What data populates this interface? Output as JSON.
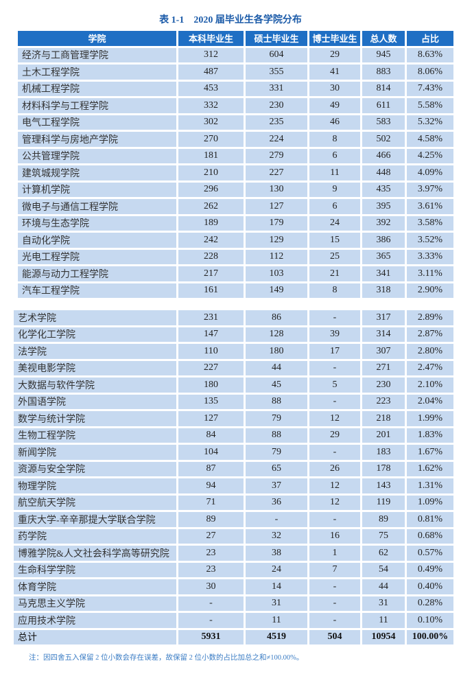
{
  "title": "表 1-1　2020 届毕业生各学院分布",
  "headers": [
    "学院",
    "本科毕业生",
    "硕士毕业生",
    "博士毕业生",
    "总人数",
    "占比"
  ],
  "table1": [
    [
      "经济与工商管理学院",
      "312",
      "604",
      "29",
      "945",
      "8.63%"
    ],
    [
      "土木工程学院",
      "487",
      "355",
      "41",
      "883",
      "8.06%"
    ],
    [
      "机械工程学院",
      "453",
      "331",
      "30",
      "814",
      "7.43%"
    ],
    [
      "材料科学与工程学院",
      "332",
      "230",
      "49",
      "611",
      "5.58%"
    ],
    [
      "电气工程学院",
      "302",
      "235",
      "46",
      "583",
      "5.32%"
    ],
    [
      "管理科学与房地产学院",
      "270",
      "224",
      "8",
      "502",
      "4.58%"
    ],
    [
      "公共管理学院",
      "181",
      "279",
      "6",
      "466",
      "4.25%"
    ],
    [
      "建筑城规学院",
      "210",
      "227",
      "11",
      "448",
      "4.09%"
    ],
    [
      "计算机学院",
      "296",
      "130",
      "9",
      "435",
      "3.97%"
    ],
    [
      "微电子与通信工程学院",
      "262",
      "127",
      "6",
      "395",
      "3.61%"
    ],
    [
      "环境与生态学院",
      "189",
      "179",
      "24",
      "392",
      "3.58%"
    ],
    [
      "自动化学院",
      "242",
      "129",
      "15",
      "386",
      "3.52%"
    ],
    [
      "光电工程学院",
      "228",
      "112",
      "25",
      "365",
      "3.33%"
    ],
    [
      "能源与动力工程学院",
      "217",
      "103",
      "21",
      "341",
      "3.11%"
    ],
    [
      "汽车工程学院",
      "161",
      "149",
      "8",
      "318",
      "2.90%"
    ]
  ],
  "table2": [
    [
      "艺术学院",
      "231",
      "86",
      "-",
      "317",
      "2.89%"
    ],
    [
      "化学化工学院",
      "147",
      "128",
      "39",
      "314",
      "2.87%"
    ],
    [
      "法学院",
      "110",
      "180",
      "17",
      "307",
      "2.80%"
    ],
    [
      "美视电影学院",
      "227",
      "44",
      "-",
      "271",
      "2.47%"
    ],
    [
      "大数据与软件学院",
      "180",
      "45",
      "5",
      "230",
      "2.10%"
    ],
    [
      "外国语学院",
      "135",
      "88",
      "-",
      "223",
      "2.04%"
    ],
    [
      "数学与统计学院",
      "127",
      "79",
      "12",
      "218",
      "1.99%"
    ],
    [
      "生物工程学院",
      "84",
      "88",
      "29",
      "201",
      "1.83%"
    ],
    [
      "新闻学院",
      "104",
      "79",
      "-",
      "183",
      "1.67%"
    ],
    [
      "资源与安全学院",
      "87",
      "65",
      "26",
      "178",
      "1.62%"
    ],
    [
      "物理学院",
      "94",
      "37",
      "12",
      "143",
      "1.31%"
    ],
    [
      "航空航天学院",
      "71",
      "36",
      "12",
      "119",
      "1.09%"
    ],
    [
      "重庆大学-辛辛那提大学联合学院",
      "89",
      "-",
      "-",
      "89",
      "0.81%"
    ],
    [
      "药学院",
      "27",
      "32",
      "16",
      "75",
      "0.68%"
    ],
    [
      "博雅学院&人文社会科学高等研究院",
      "23",
      "38",
      "1",
      "62",
      "0.57%"
    ],
    [
      "生命科学学院",
      "23",
      "24",
      "7",
      "54",
      "0.49%"
    ],
    [
      "体育学院",
      "30",
      "14",
      "-",
      "44",
      "0.40%"
    ],
    [
      "马克思主义学院",
      "-",
      "31",
      "-",
      "31",
      "0.28%"
    ],
    [
      "应用技术学院",
      "-",
      "11",
      "-",
      "11",
      "0.10%"
    ]
  ],
  "total": [
    "总计",
    "5931",
    "4519",
    "504",
    "10954",
    "100.00%"
  ],
  "note": "注：因四舍五入保留 2 位小数会存在误差，故保留 2 位小数的占比加总之和≠100.00%。",
  "colors": {
    "header": "#1f6fc4",
    "row": "#c6d9f0",
    "title": "#1a5aa8"
  }
}
